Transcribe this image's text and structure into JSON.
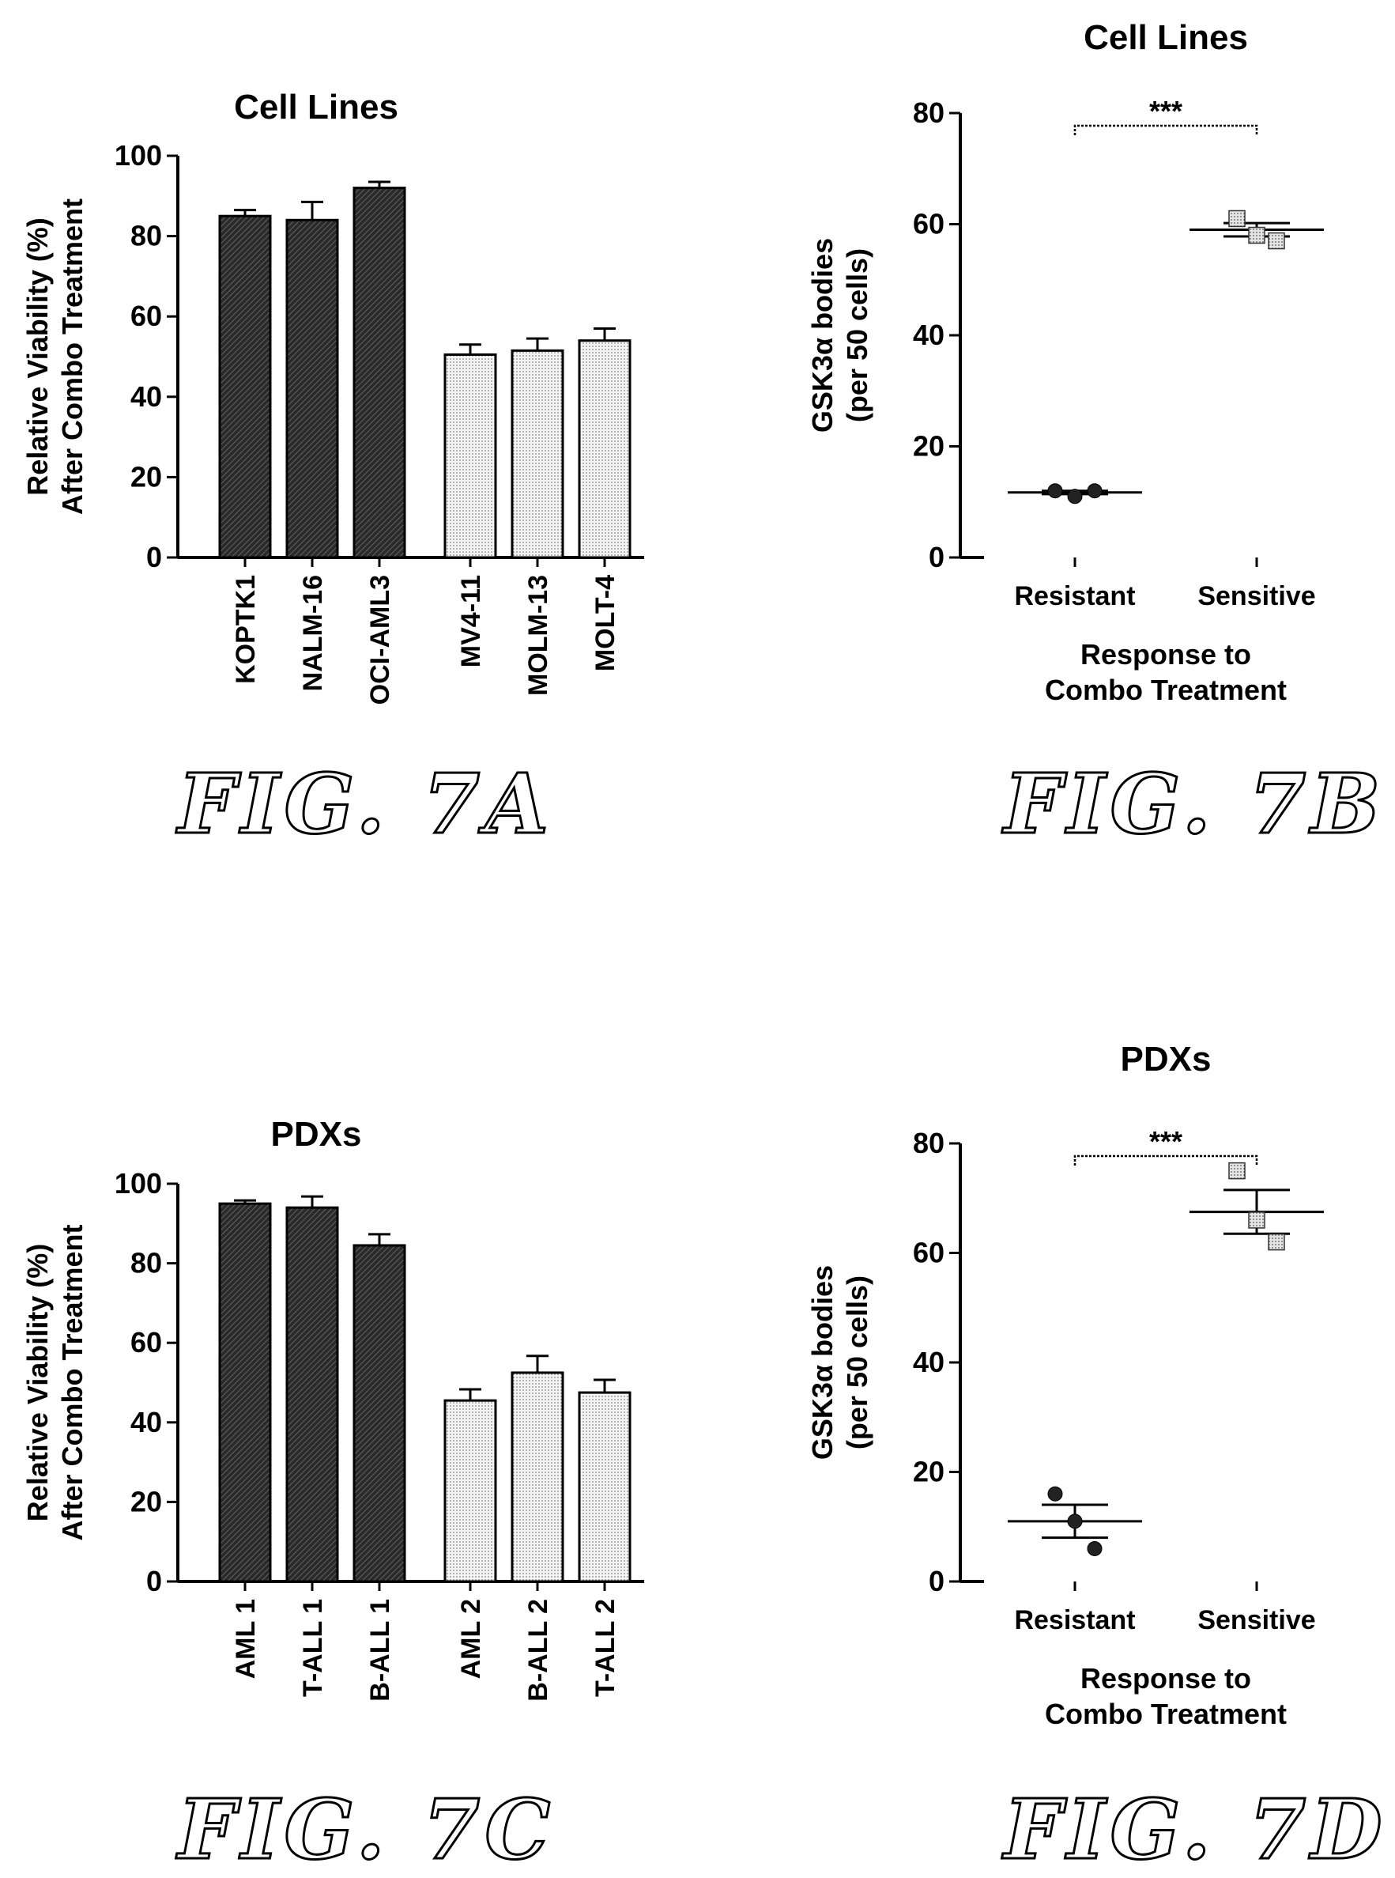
{
  "figures": [
    {
      "id": "p7a",
      "fig_label": "FIG. 7A"
    },
    {
      "id": "p7b",
      "fig_label": "FIG. 7B"
    },
    {
      "id": "p7c",
      "fig_label": "FIG. 7C"
    },
    {
      "id": "p7d",
      "fig_label": "FIG. 7D"
    }
  ],
  "chart_data": [
    {
      "panel": "7A",
      "type": "bar",
      "title": "Cell Lines",
      "ylabel": [
        "Relative Viability (%)",
        "After Combo Treatment"
      ],
      "ylim": [
        0,
        100
      ],
      "yticks": [
        0,
        20,
        40,
        60,
        80,
        100
      ],
      "categories": [
        "KOPTK1",
        "NALM-16",
        "OCI-AML3",
        "MV4-11",
        "MOLM-13",
        "MOLT-4"
      ],
      "values": [
        85,
        84,
        92,
        50.5,
        51.5,
        54
      ],
      "errors": [
        1.5,
        4.5,
        1.5,
        2.5,
        3,
        3
      ],
      "groups": [
        "dark",
        "dark",
        "dark",
        "light",
        "light",
        "light"
      ]
    },
    {
      "panel": "7B",
      "type": "scatter",
      "title": "Cell Lines",
      "ylabel": [
        "GSK3α bodies",
        "(per 50 cells)"
      ],
      "xlabel": [
        "Response to",
        "Combo Treatment"
      ],
      "ylim": [
        0,
        80
      ],
      "yticks": [
        0,
        20,
        40,
        60,
        80
      ],
      "categories": [
        "Resistant",
        "Sensitive"
      ],
      "series": [
        {
          "category": "Resistant",
          "marker": "circle",
          "points": [
            12,
            11,
            12
          ],
          "mean": 11.7,
          "sem": 0.3
        },
        {
          "category": "Sensitive",
          "marker": "square",
          "points": [
            61,
            58,
            57
          ],
          "mean": 59,
          "sem": 1.2
        }
      ],
      "significance": "***"
    },
    {
      "panel": "7C",
      "type": "bar",
      "title": "PDXs",
      "ylabel": [
        "Relative Viability (%)",
        "After Combo Treatment"
      ],
      "ylim": [
        0,
        100
      ],
      "yticks": [
        0,
        20,
        40,
        60,
        80,
        100
      ],
      "categories": [
        "AML 1",
        "T-ALL 1",
        "B-ALL 1",
        "AML 2",
        "B-ALL 2",
        "T-ALL 2"
      ],
      "values": [
        95,
        94,
        84.5,
        45.5,
        52.5,
        47.5
      ],
      "errors": [
        0.8,
        2.8,
        2.8,
        2.8,
        4.2,
        3.2
      ],
      "groups": [
        "dark",
        "dark",
        "dark",
        "light",
        "light",
        "light"
      ]
    },
    {
      "panel": "7D",
      "type": "scatter",
      "title": "PDXs",
      "ylabel": [
        "GSK3α bodies",
        "(per 50 cells)"
      ],
      "xlabel": [
        "Response to",
        "Combo Treatment"
      ],
      "ylim": [
        0,
        80
      ],
      "yticks": [
        0,
        20,
        40,
        60,
        80
      ],
      "categories": [
        "Resistant",
        "Sensitive"
      ],
      "series": [
        {
          "category": "Resistant",
          "marker": "circle",
          "points": [
            16,
            11,
            6
          ],
          "mean": 11,
          "sem": 3
        },
        {
          "category": "Sensitive",
          "marker": "square",
          "points": [
            75,
            66,
            62
          ],
          "mean": 67.5,
          "sem": 4
        }
      ],
      "significance": "***"
    }
  ]
}
